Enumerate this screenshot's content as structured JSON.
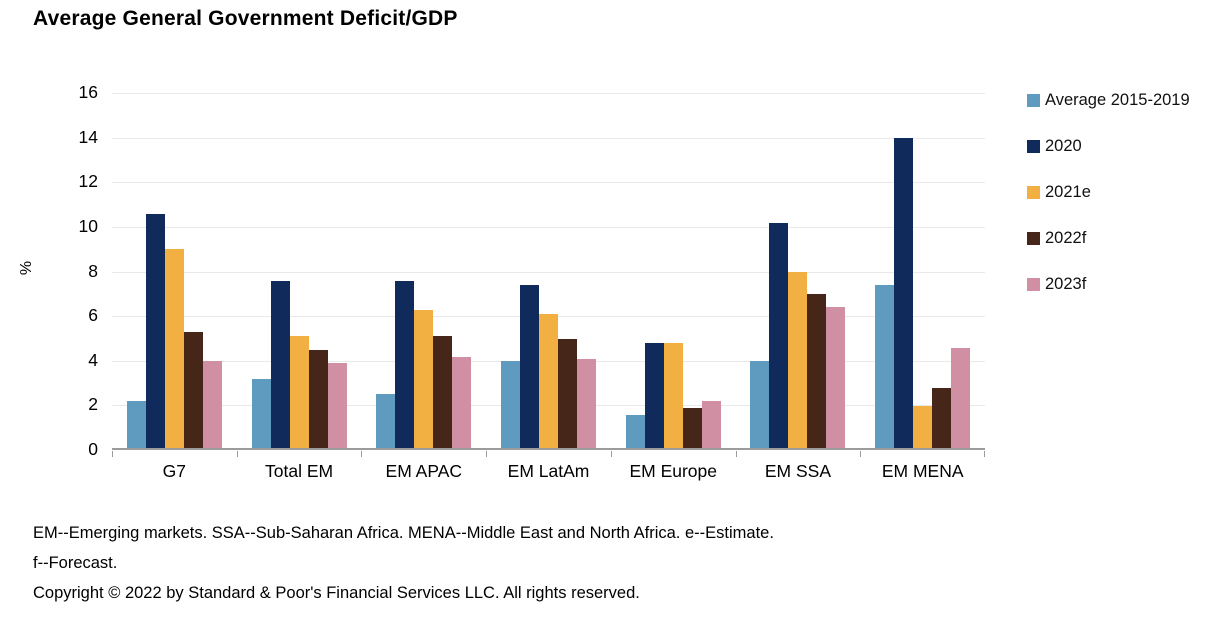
{
  "title": "Average General Government Deficit/GDP",
  "footnotes": {
    "note_line1": "EM--Emerging markets. SSA--Sub-Saharan Africa. MENA--Middle East and North Africa. e--Estimate.",
    "note_line2": "f--Forecast.",
    "copyright": "Copyright © 2022 by Standard & Poor's Financial Services LLC. All rights reserved."
  },
  "colors": {
    "gridline": "#e9e9e9",
    "axis": "#9b9b9b",
    "background": "#ffffff"
  },
  "chart_data": {
    "type": "bar",
    "title": "Average General Government Deficit/GDP",
    "xlabel": "",
    "ylabel": "%",
    "ylim": [
      0,
      16
    ],
    "yticks": [
      0,
      2,
      4,
      6,
      8,
      10,
      12,
      14,
      16
    ],
    "grid": true,
    "legend_position": "right",
    "categories": [
      "G7",
      "Total EM",
      "EM APAC",
      "EM LatAm",
      "EM Europe",
      "EM SSA",
      "EM MENA"
    ],
    "series": [
      {
        "name": "Average 2015-2019",
        "color": "#5f9abf",
        "values": [
          2.1,
          3.1,
          2.4,
          3.9,
          1.5,
          3.9,
          7.3
        ]
      },
      {
        "name": "2020",
        "color": "#102a5c",
        "values": [
          10.5,
          7.5,
          7.5,
          7.3,
          4.7,
          10.1,
          13.9
        ]
      },
      {
        "name": "2021e",
        "color": "#f2b042",
        "values": [
          8.9,
          5.0,
          6.2,
          6.0,
          4.7,
          7.9,
          1.9
        ]
      },
      {
        "name": "2022f",
        "color": "#452618",
        "values": [
          5.2,
          4.4,
          5.0,
          4.9,
          1.8,
          6.9,
          2.7
        ]
      },
      {
        "name": "2023f",
        "color": "#d18fa3",
        "values": [
          3.9,
          3.8,
          4.1,
          4.0,
          2.1,
          6.3,
          4.5
        ]
      }
    ]
  }
}
